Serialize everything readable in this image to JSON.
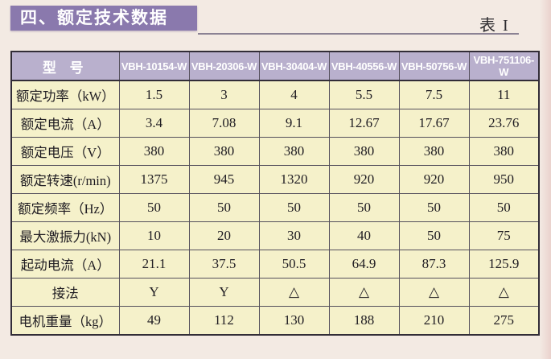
{
  "page": {
    "title": "四、额定技术数据",
    "table_label": "表 I",
    "colors": {
      "page_bg": "#f3eae3",
      "title_bg": "#8a79ad",
      "header_bg": "#b9b0cd",
      "cell_bg": "#f5f1ca",
      "border_dark": "#322d37",
      "grid": "#55505c",
      "rule": "#8b8294",
      "text": "#1f1c22"
    }
  },
  "table": {
    "header": {
      "model_label": "型 号",
      "models": [
        "VBH-10154-W",
        "VBH-20306-W",
        "VBH-30404-W",
        "VBH-40556-W",
        "VBH-50756-W",
        "VBH-751106-W"
      ]
    },
    "rows": [
      {
        "label": "额定功率（kW）",
        "values": [
          "1.5",
          "3",
          "4",
          "5.5",
          "7.5",
          "11"
        ]
      },
      {
        "label": "额定电流（A）",
        "values": [
          "3.4",
          "7.08",
          "9.1",
          "12.67",
          "17.67",
          "23.76"
        ]
      },
      {
        "label": "额定电压（V）",
        "values": [
          "380",
          "380",
          "380",
          "380",
          "380",
          "380"
        ]
      },
      {
        "label": "额定转速(r/min)",
        "values": [
          "1375",
          "945",
          "1320",
          "920",
          "920",
          "950"
        ]
      },
      {
        "label": "额定频率（Hz）",
        "values": [
          "50",
          "50",
          "50",
          "50",
          "50",
          "50"
        ]
      },
      {
        "label": "最大激振力(kN)",
        "values": [
          "10",
          "20",
          "30",
          "40",
          "50",
          "75"
        ]
      },
      {
        "label": "起动电流（A）",
        "values": [
          "21.1",
          "37.5",
          "50.5",
          "64.9",
          "87.3",
          "125.9"
        ]
      },
      {
        "label": "接法",
        "values": [
          "Y",
          "Y",
          "△",
          "△",
          "△",
          "△"
        ]
      },
      {
        "label": "电机重量（kg）",
        "values": [
          "49",
          "112",
          "130",
          "188",
          "210",
          "275"
        ]
      }
    ]
  }
}
